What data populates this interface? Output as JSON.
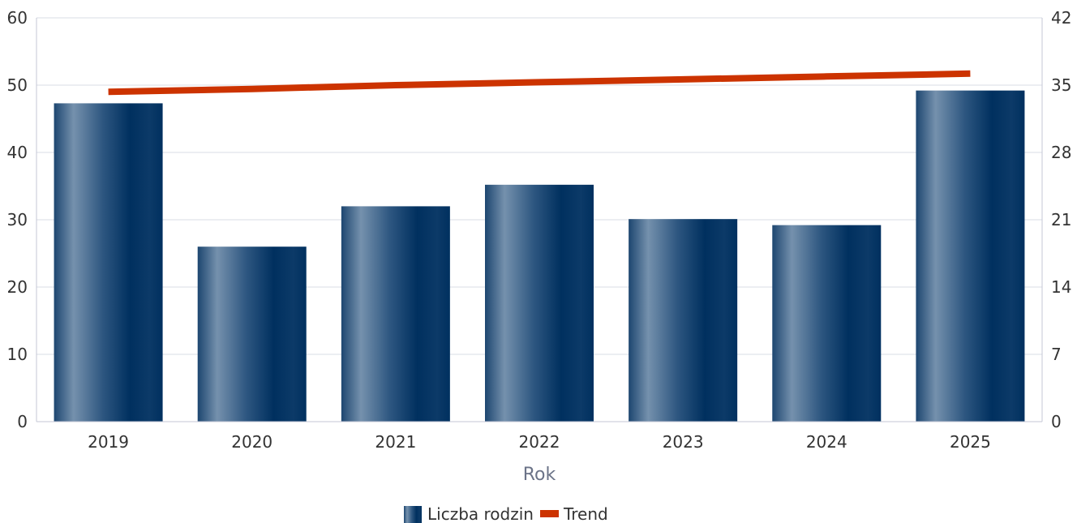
{
  "chart_data": {
    "type": "bar",
    "categories": [
      "2019",
      "2020",
      "2021",
      "2022",
      "2023",
      "2024",
      "2025"
    ],
    "series": [
      {
        "name": "Liczba rodzin",
        "type": "bar",
        "axis": "left",
        "values": [
          47.3,
          26.0,
          32.0,
          35.2,
          30.1,
          29.2,
          49.2
        ]
      },
      {
        "name": "Trend",
        "type": "line",
        "axis": "right",
        "values": [
          34.3,
          34.6,
          35.0,
          35.3,
          35.6,
          35.9,
          36.2
        ]
      }
    ],
    "xlabel": "Rok",
    "ylabel": "",
    "ylim": [
      0,
      60
    ],
    "yticks": [
      "0",
      "10",
      "20",
      "30",
      "40",
      "50",
      "60"
    ],
    "y2lim": [
      0,
      42
    ],
    "y2ticks": [
      "0",
      "7",
      "14",
      "21",
      "28",
      "35",
      "42"
    ],
    "grid": true,
    "legend_position": "bottom-center",
    "colors": {
      "bar_dark": "#00305f",
      "bar_light": "#7591ad",
      "trend": "#cc3300",
      "grid": "#d9dce4",
      "axis": "#c4c7d6"
    }
  }
}
